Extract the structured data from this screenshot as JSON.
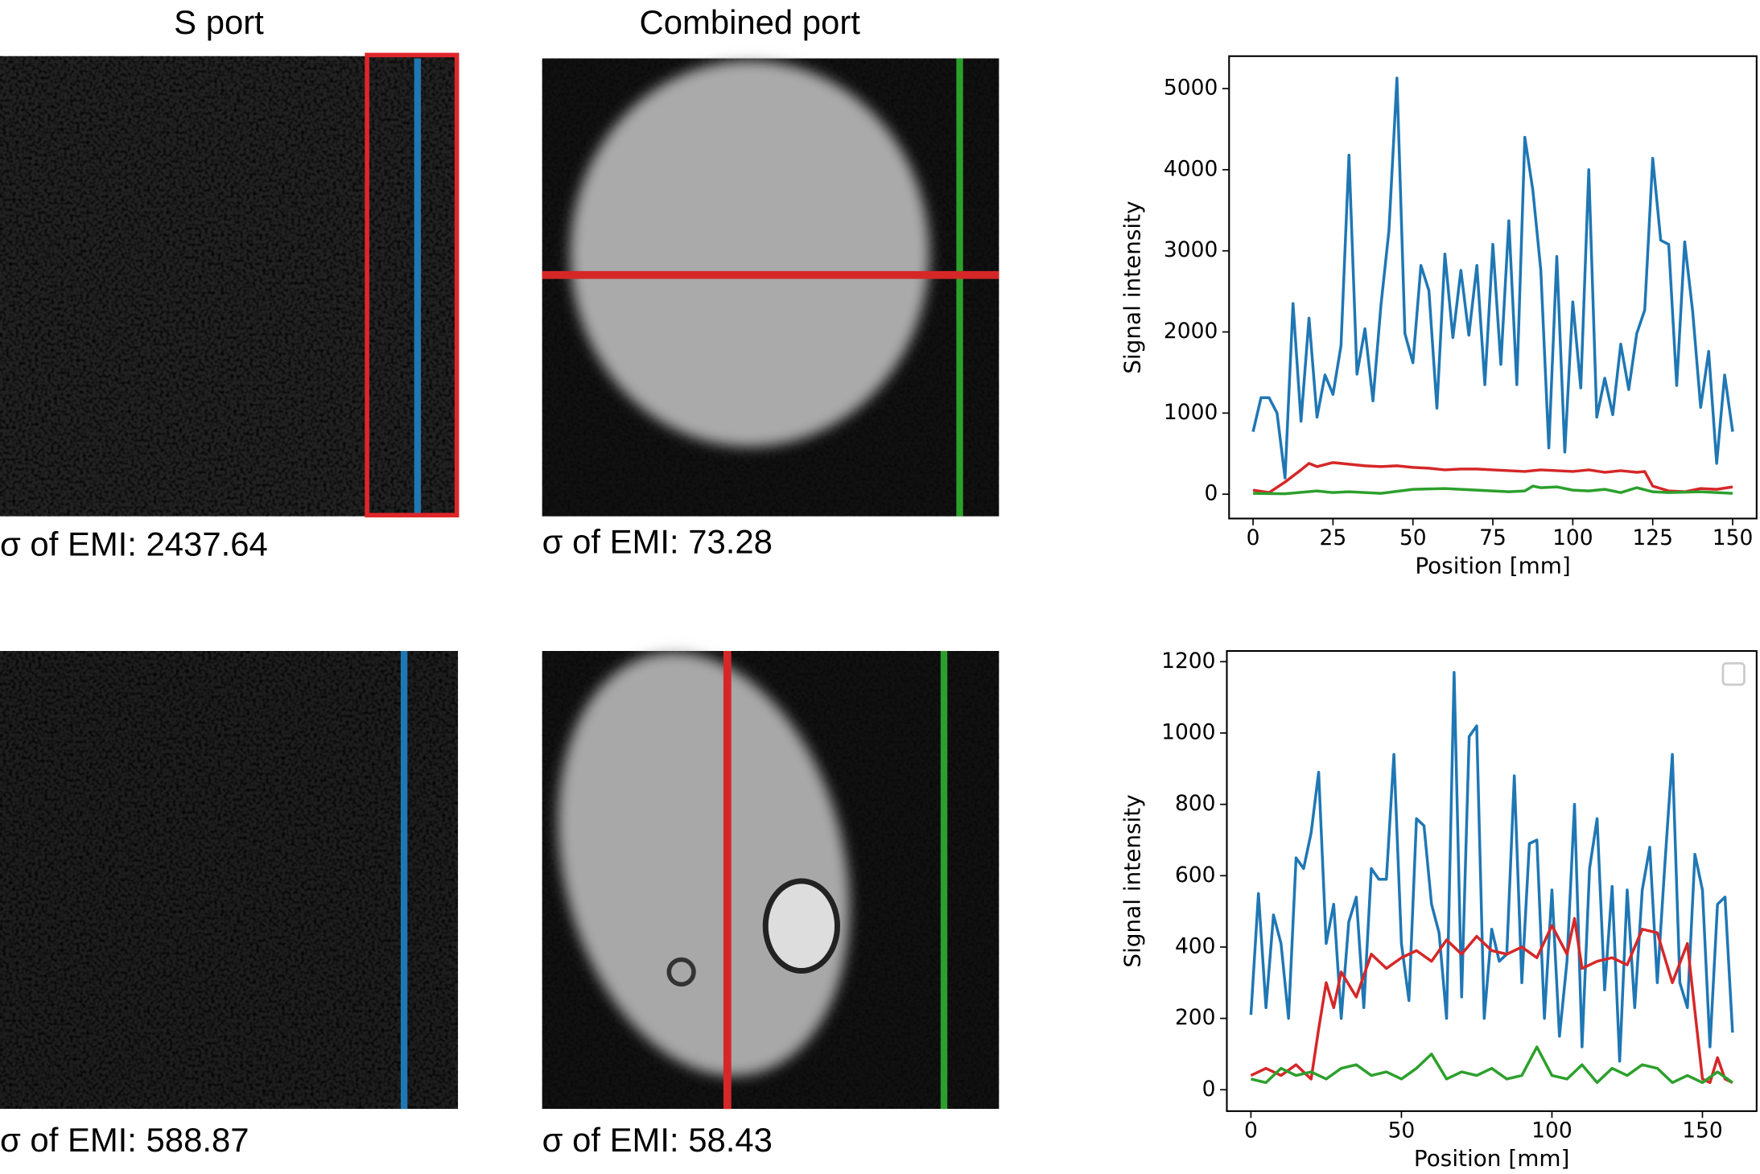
{
  "columns": [
    "S port",
    "Combined port"
  ],
  "emi_labels": [
    [
      "σ of EMI: 2437.64",
      "σ of EMI: 73.28"
    ],
    [
      "σ of EMI: 588.87",
      "σ of EMI: 58.43"
    ]
  ],
  "chart_data": [
    {
      "type": "line",
      "xlabel": "Position [mm]",
      "ylabel": "Signal intensity",
      "xlim": [
        -7.5,
        157.5
      ],
      "ylim": [
        -300,
        5400
      ],
      "xticks": [
        0,
        25,
        50,
        75,
        100,
        125,
        150
      ],
      "yticks": [
        0,
        1000,
        2000,
        3000,
        4000,
        5000
      ],
      "series": [
        {
          "color": "#1f77b4",
          "x": [
            0,
            2.5,
            5,
            7.5,
            10,
            12.5,
            15,
            17.5,
            20,
            22.5,
            25,
            27.5,
            30,
            32.5,
            35,
            37.5,
            40,
            42.5,
            45,
            47.5,
            50,
            52.5,
            55,
            57.5,
            60,
            62.5,
            65,
            67.5,
            70,
            72.5,
            75,
            77.5,
            80,
            82.5,
            85,
            87.5,
            90,
            92.5,
            95,
            97.5,
            100,
            102.5,
            105,
            107.5,
            110,
            112.5,
            115,
            117.5,
            120,
            122.5,
            125,
            127.5,
            130,
            132.5,
            135,
            137.5,
            140,
            142.5,
            145,
            147.5,
            150
          ],
          "values": [
            770,
            1190,
            1190,
            1000,
            200,
            2350,
            900,
            2170,
            950,
            1470,
            1230,
            1830,
            4180,
            1480,
            2040,
            1150,
            2330,
            3250,
            5130,
            1980,
            1620,
            2820,
            2510,
            1060,
            2960,
            1930,
            2760,
            1960,
            2820,
            1350,
            3080,
            1600,
            3370,
            1350,
            4400,
            3750,
            2760,
            570,
            2930,
            520,
            2370,
            1310,
            4000,
            950,
            1430,
            980,
            1850,
            1290,
            1980,
            2270,
            4140,
            3130,
            3080,
            1340,
            3110,
            2250,
            1070,
            1760,
            380,
            1470,
            770
          ]
        },
        {
          "color": "#d62728",
          "x": [
            0,
            5,
            10,
            15,
            17.5,
            20,
            25,
            30,
            35,
            40,
            45,
            50,
            55,
            60,
            65,
            70,
            75,
            80,
            85,
            90,
            95,
            100,
            105,
            110,
            115,
            120,
            122.5,
            125,
            130,
            135,
            140,
            145,
            150
          ],
          "values": [
            50,
            20,
            150,
            300,
            380,
            340,
            390,
            370,
            350,
            340,
            350,
            330,
            320,
            300,
            310,
            310,
            300,
            290,
            280,
            300,
            290,
            280,
            300,
            270,
            290,
            270,
            280,
            100,
            40,
            30,
            70,
            60,
            90
          ]
        },
        {
          "color": "#2ca02c",
          "x": [
            0,
            10,
            20,
            25,
            30,
            40,
            50,
            60,
            70,
            80,
            85,
            87.5,
            90,
            95,
            100,
            105,
            110,
            115,
            120,
            125,
            130,
            140,
            150
          ],
          "values": [
            10,
            5,
            40,
            20,
            30,
            10,
            60,
            70,
            50,
            30,
            40,
            100,
            80,
            90,
            50,
            40,
            60,
            20,
            80,
            30,
            20,
            30,
            10
          ]
        }
      ]
    },
    {
      "type": "line",
      "xlabel": "Position [mm]",
      "ylabel": "Signal intensity",
      "xlim": [
        -8,
        168
      ],
      "ylim": [
        -60,
        1230
      ],
      "xticks": [
        0,
        50,
        100,
        150
      ],
      "yticks": [
        0,
        200,
        400,
        600,
        800,
        1000,
        1200
      ],
      "series": [
        {
          "color": "#1f77b4",
          "x": [
            0,
            2.5,
            5,
            7.5,
            10,
            12.5,
            15,
            17.5,
            20,
            22.5,
            25,
            27.5,
            30,
            32.5,
            35,
            37.5,
            40,
            42.5,
            45,
            47.5,
            50,
            52.5,
            55,
            57.5,
            60,
            62.5,
            65,
            67.5,
            70,
            72.5,
            75,
            77.5,
            80,
            82.5,
            85,
            87.5,
            90,
            92.5,
            95,
            97.5,
            100,
            102.5,
            105,
            107.5,
            110,
            112.5,
            115,
            117.5,
            120,
            122.5,
            125,
            127.5,
            130,
            132.5,
            135,
            137.5,
            140,
            142.5,
            145,
            147.5,
            150,
            152.5,
            155,
            157.5,
            160
          ],
          "values": [
            210,
            550,
            230,
            490,
            410,
            200,
            650,
            620,
            720,
            890,
            410,
            520,
            200,
            470,
            540,
            230,
            620,
            590,
            590,
            940,
            410,
            250,
            760,
            740,
            520,
            440,
            200,
            1170,
            260,
            990,
            1020,
            200,
            450,
            360,
            380,
            880,
            300,
            690,
            700,
            200,
            560,
            150,
            360,
            800,
            120,
            620,
            760,
            280,
            570,
            80,
            560,
            230,
            560,
            680,
            300,
            630,
            940,
            300,
            230,
            660,
            560,
            120,
            520,
            540,
            160
          ]
        },
        {
          "color": "#d62728",
          "x": [
            0,
            5,
            10,
            15,
            20,
            22.5,
            25,
            27.5,
            30,
            35,
            40,
            45,
            50,
            55,
            60,
            65,
            70,
            75,
            80,
            85,
            90,
            95,
            100,
            105,
            107.5,
            110,
            115,
            120,
            125,
            130,
            135,
            140,
            145,
            150,
            152.5,
            155,
            157.5,
            160
          ],
          "values": [
            40,
            60,
            40,
            70,
            30,
            170,
            300,
            230,
            330,
            260,
            380,
            340,
            370,
            390,
            360,
            420,
            380,
            430,
            390,
            380,
            400,
            370,
            460,
            380,
            480,
            340,
            360,
            370,
            350,
            450,
            440,
            300,
            410,
            30,
            20,
            90,
            30,
            20
          ]
        },
        {
          "color": "#2ca02c",
          "x": [
            0,
            5,
            10,
            15,
            20,
            25,
            30,
            35,
            40,
            45,
            50,
            55,
            60,
            65,
            70,
            75,
            80,
            85,
            90,
            95,
            100,
            105,
            110,
            115,
            120,
            125,
            130,
            135,
            140,
            145,
            150,
            155,
            160
          ],
          "values": [
            30,
            20,
            60,
            40,
            50,
            30,
            60,
            70,
            40,
            50,
            30,
            60,
            100,
            30,
            50,
            40,
            60,
            30,
            40,
            120,
            40,
            30,
            70,
            20,
            60,
            40,
            70,
            60,
            20,
            40,
            20,
            50,
            20
          ]
        }
      ]
    }
  ]
}
